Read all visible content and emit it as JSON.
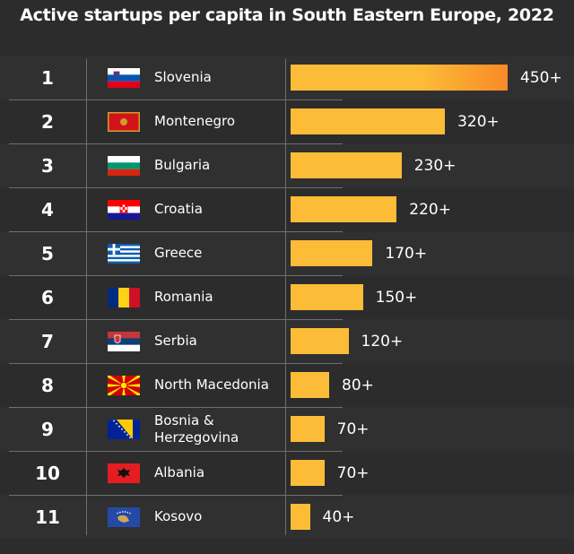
{
  "chart_data": {
    "type": "bar",
    "title": "Active startups per capita in South Eastern Europe, 2022",
    "xlabel": "",
    "ylabel": "",
    "ranks": [
      "1",
      "2",
      "3",
      "4",
      "5",
      "6",
      "7",
      "8",
      "9",
      "10",
      "11"
    ],
    "categories": [
      "Slovenia",
      "Montenegro",
      "Bulgaria",
      "Croatia",
      "Greece",
      "Romania",
      "Serbia",
      "North Macedonia",
      "Bosnia & Herzegovina",
      "Albania",
      "Kosovo"
    ],
    "values": [
      450,
      320,
      230,
      220,
      170,
      150,
      120,
      80,
      70,
      70,
      40
    ],
    "value_labels": [
      "450+",
      "320+",
      "230+",
      "220+",
      "170+",
      "150+",
      "120+",
      "80+",
      "70+",
      "70+",
      "40+"
    ],
    "xlim": [
      0,
      450
    ],
    "grid": false,
    "bar_color": "#fcbc38",
    "top_bar_gradient_end": "#f88a28",
    "background": "#2c2c2c"
  },
  "flags": [
    "slovenia-flag-icon",
    "montenegro-flag-icon",
    "bulgaria-flag-icon",
    "croatia-flag-icon",
    "greece-flag-icon",
    "romania-flag-icon",
    "serbia-flag-icon",
    "north-macedonia-flag-icon",
    "bosnia-herzegovina-flag-icon",
    "albania-flag-icon",
    "kosovo-flag-icon"
  ]
}
